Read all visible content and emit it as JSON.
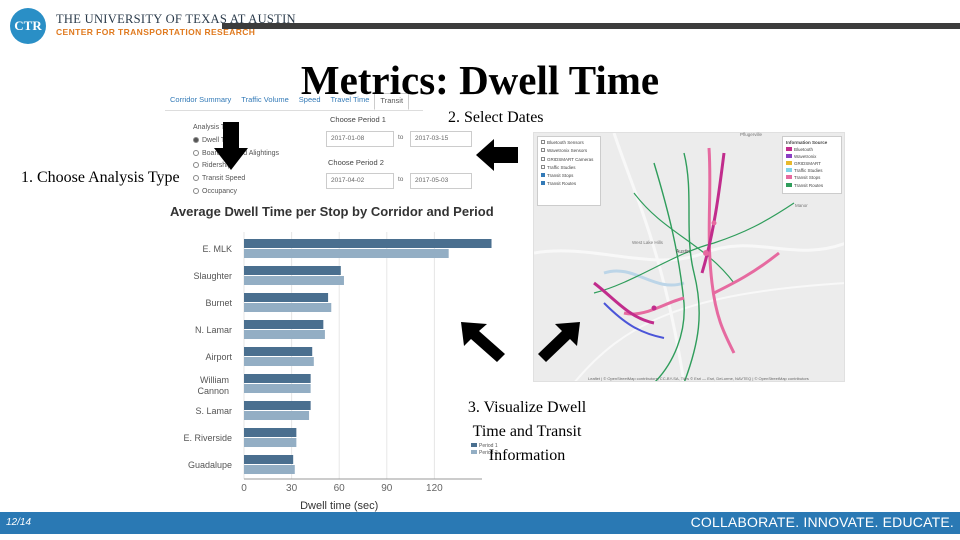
{
  "header": {
    "logo_text": "CTR",
    "university": "THE UNIVERSITY OF TEXAS AT AUSTIN",
    "center": "CENTER FOR TRANSPORTATION RESEARCH"
  },
  "slide_title": "Metrics: Dwell Time",
  "app": {
    "tabs": [
      "Corridor Summary",
      "Traffic Volume",
      "Speed",
      "Travel Time",
      "Transit"
    ],
    "active_tab": "Transit",
    "analysis_type": {
      "label": "Analysis Type",
      "options": [
        {
          "label": "Dwell Time",
          "selected": true
        },
        {
          "label": "Boardings and Alightings",
          "selected": false
        },
        {
          "label": "Ridership",
          "selected": false
        },
        {
          "label": "Transit Speed",
          "selected": false
        },
        {
          "label": "Occupancy",
          "selected": false
        }
      ]
    },
    "period1": {
      "label": "Choose Period 1",
      "start": "2017-01-08",
      "to": "to",
      "end": "2017-03-15"
    },
    "period2": {
      "label": "Choose Period 2",
      "start": "2017-04-02",
      "to": "to",
      "end": "2017-05-03"
    }
  },
  "annotations": {
    "step1": "1. Choose Analysis Type",
    "step2": "2. Select Dates",
    "step3_line1": "3. Visualize Dwell",
    "step3_line2": "Time and Transit",
    "step3_line3": "Information"
  },
  "chart_data": {
    "type": "bar",
    "orientation": "horizontal",
    "title": "Average Dwell Time per Stop by Corridor and Period",
    "xlabel": "Dwell time (sec)",
    "ylabel": "",
    "xlim": [
      0,
      150
    ],
    "xticks": [
      0,
      30,
      60,
      90,
      120
    ],
    "categories": [
      "E. MLK",
      "Slaughter",
      "Burnet",
      "N. Lamar",
      "Airport",
      "William Cannon",
      "S. Lamar",
      "E. Riverside",
      "Guadalupe"
    ],
    "series": [
      {
        "name": "Period 1",
        "color": "#4a6f8f",
        "values": [
          156,
          61,
          53,
          50,
          43,
          42,
          42,
          33,
          31
        ]
      },
      {
        "name": "Period 2",
        "color": "#93aec4",
        "values": [
          129,
          63,
          55,
          51,
          44,
          42,
          41,
          33,
          32
        ]
      }
    ],
    "legend": [
      "Period 1",
      "Period 2"
    ]
  },
  "map": {
    "legend_left": [
      {
        "label": "Bluetooth Sensors",
        "checked": false
      },
      {
        "label": "Wavetronix Sensors",
        "checked": false
      },
      {
        "label": "GRIDSMART Cameras",
        "checked": false
      },
      {
        "label": "Traffic Studies",
        "checked": false
      },
      {
        "label": "Transit Stops",
        "checked": true
      },
      {
        "label": "Transit Routes",
        "checked": true
      }
    ],
    "legend_right_title": "Information Source",
    "legend_right": [
      {
        "label": "Bluetooth",
        "color": "#c12c8c"
      },
      {
        "label": "Wavetronix",
        "color": "#8a3fc4"
      },
      {
        "label": "GRIDSMART",
        "color": "#e8b92c"
      },
      {
        "label": "Traffic Studies",
        "color": "#7fd3e6"
      },
      {
        "label": "Transit Stops",
        "color": "#e66aa0"
      },
      {
        "label": "Transit Routes",
        "color": "#2f9d5b"
      }
    ],
    "place_labels": [
      "Austin",
      "West Lake Hills",
      "Manor",
      "Pflugerville"
    ],
    "attribution": "Leaflet | © OpenStreetMap contributors, CC-BY-SA, Tiles © Esri — Esri, DeLorme, NAVTEQ | © OpenStreetMap contributors"
  },
  "footer": {
    "page": "12/14",
    "tagline": "COLLABORATE. INNOVATE. EDUCATE."
  }
}
